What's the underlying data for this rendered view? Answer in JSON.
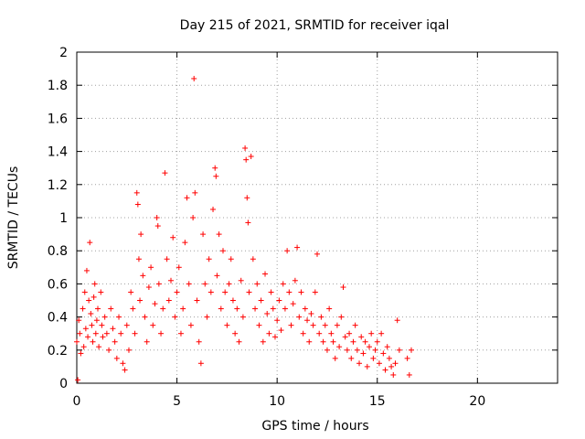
{
  "chart_data": {
    "type": "scatter",
    "title": "Day 215 of 2021, SRMTID for receiver iqal",
    "xlabel": "GPS time / hours",
    "ylabel": "SRMTID / TECUs",
    "xlim": [
      0,
      24
    ],
    "ylim": [
      0,
      2
    ],
    "xticks": [
      0,
      5,
      10,
      15,
      20
    ],
    "yticks": [
      0,
      0.2,
      0.4,
      0.6,
      0.8,
      1,
      1.2,
      1.4,
      1.6,
      1.8,
      2
    ],
    "xtick_labels": [
      "0",
      "5",
      "10",
      "15",
      "20"
    ],
    "ytick_labels": [
      "0",
      "0.2",
      "0.4",
      "0.6",
      "0.8",
      "1",
      "1.2",
      "1.4",
      "1.6",
      "1.8",
      "2"
    ],
    "grid": true,
    "marker": "+",
    "color": "#ff0000",
    "series": [
      {
        "name": "SRMTID",
        "points": [
          [
            0.0,
            0.25
          ],
          [
            0.05,
            0.02
          ],
          [
            0.1,
            0.38
          ],
          [
            0.15,
            0.3
          ],
          [
            0.2,
            0.18
          ],
          [
            0.3,
            0.45
          ],
          [
            0.35,
            0.22
          ],
          [
            0.4,
            0.55
          ],
          [
            0.45,
            0.33
          ],
          [
            0.5,
            0.68
          ],
          [
            0.55,
            0.28
          ],
          [
            0.6,
            0.5
          ],
          [
            0.65,
            0.85
          ],
          [
            0.7,
            0.42
          ],
          [
            0.75,
            0.35
          ],
          [
            0.8,
            0.25
          ],
          [
            0.85,
            0.52
          ],
          [
            0.9,
            0.6
          ],
          [
            0.95,
            0.3
          ],
          [
            1.0,
            0.38
          ],
          [
            1.05,
            0.45
          ],
          [
            1.1,
            0.22
          ],
          [
            1.2,
            0.55
          ],
          [
            1.25,
            0.35
          ],
          [
            1.3,
            0.28
          ],
          [
            1.4,
            0.4
          ],
          [
            1.5,
            0.3
          ],
          [
            1.6,
            0.2
          ],
          [
            1.7,
            0.45
          ],
          [
            1.8,
            0.33
          ],
          [
            1.9,
            0.25
          ],
          [
            2.0,
            0.15
          ],
          [
            2.1,
            0.4
          ],
          [
            2.2,
            0.3
          ],
          [
            2.3,
            0.12
          ],
          [
            2.4,
            0.08
          ],
          [
            2.5,
            0.35
          ],
          [
            2.6,
            0.2
          ],
          [
            2.7,
            0.55
          ],
          [
            2.8,
            0.45
          ],
          [
            2.9,
            0.3
          ],
          [
            3.0,
            1.15
          ],
          [
            3.05,
            1.08
          ],
          [
            3.1,
            0.75
          ],
          [
            3.15,
            0.5
          ],
          [
            3.2,
            0.9
          ],
          [
            3.3,
            0.65
          ],
          [
            3.4,
            0.4
          ],
          [
            3.5,
            0.25
          ],
          [
            3.6,
            0.58
          ],
          [
            3.7,
            0.7
          ],
          [
            3.8,
            0.35
          ],
          [
            3.9,
            0.48
          ],
          [
            4.0,
            1.0
          ],
          [
            4.05,
            0.95
          ],
          [
            4.1,
            0.6
          ],
          [
            4.2,
            0.3
          ],
          [
            4.3,
            0.45
          ],
          [
            4.4,
            1.27
          ],
          [
            4.5,
            0.75
          ],
          [
            4.6,
            0.5
          ],
          [
            4.7,
            0.62
          ],
          [
            4.8,
            0.88
          ],
          [
            4.9,
            0.4
          ],
          [
            5.0,
            0.55
          ],
          [
            5.1,
            0.7
          ],
          [
            5.2,
            0.3
          ],
          [
            5.3,
            0.45
          ],
          [
            5.4,
            0.85
          ],
          [
            5.5,
            1.12
          ],
          [
            5.6,
            0.6
          ],
          [
            5.7,
            0.35
          ],
          [
            5.8,
            1.0
          ],
          [
            5.85,
            1.84
          ],
          [
            5.9,
            1.15
          ],
          [
            6.0,
            0.5
          ],
          [
            6.1,
            0.25
          ],
          [
            6.2,
            0.12
          ],
          [
            6.3,
            0.9
          ],
          [
            6.4,
            0.6
          ],
          [
            6.5,
            0.4
          ],
          [
            6.6,
            0.75
          ],
          [
            6.7,
            0.55
          ],
          [
            6.8,
            1.05
          ],
          [
            6.9,
            1.3
          ],
          [
            6.95,
            1.25
          ],
          [
            7.0,
            0.65
          ],
          [
            7.1,
            0.9
          ],
          [
            7.2,
            0.45
          ],
          [
            7.3,
            0.8
          ],
          [
            7.4,
            0.55
          ],
          [
            7.5,
            0.35
          ],
          [
            7.6,
            0.6
          ],
          [
            7.7,
            0.75
          ],
          [
            7.8,
            0.5
          ],
          [
            7.9,
            0.3
          ],
          [
            8.0,
            0.45
          ],
          [
            8.1,
            0.25
          ],
          [
            8.2,
            0.62
          ],
          [
            8.3,
            0.4
          ],
          [
            8.4,
            1.42
          ],
          [
            8.45,
            1.35
          ],
          [
            8.5,
            1.12
          ],
          [
            8.55,
            0.97
          ],
          [
            8.6,
            0.55
          ],
          [
            8.7,
            1.37
          ],
          [
            8.8,
            0.75
          ],
          [
            8.9,
            0.45
          ],
          [
            9.0,
            0.6
          ],
          [
            9.1,
            0.35
          ],
          [
            9.2,
            0.5
          ],
          [
            9.3,
            0.25
          ],
          [
            9.4,
            0.66
          ],
          [
            9.5,
            0.42
          ],
          [
            9.6,
            0.3
          ],
          [
            9.7,
            0.55
          ],
          [
            9.8,
            0.45
          ],
          [
            9.9,
            0.28
          ],
          [
            10.0,
            0.38
          ],
          [
            10.1,
            0.5
          ],
          [
            10.2,
            0.32
          ],
          [
            10.3,
            0.6
          ],
          [
            10.4,
            0.45
          ],
          [
            10.5,
            0.8
          ],
          [
            10.6,
            0.55
          ],
          [
            10.7,
            0.35
          ],
          [
            10.8,
            0.48
          ],
          [
            10.9,
            0.62
          ],
          [
            11.0,
            0.82
          ],
          [
            11.1,
            0.4
          ],
          [
            11.2,
            0.55
          ],
          [
            11.3,
            0.3
          ],
          [
            11.4,
            0.45
          ],
          [
            11.5,
            0.38
          ],
          [
            11.6,
            0.25
          ],
          [
            11.7,
            0.42
          ],
          [
            11.8,
            0.35
          ],
          [
            11.9,
            0.55
          ],
          [
            12.0,
            0.78
          ],
          [
            12.1,
            0.3
          ],
          [
            12.2,
            0.4
          ],
          [
            12.3,
            0.25
          ],
          [
            12.4,
            0.35
          ],
          [
            12.5,
            0.2
          ],
          [
            12.6,
            0.45
          ],
          [
            12.7,
            0.3
          ],
          [
            12.8,
            0.25
          ],
          [
            12.9,
            0.15
          ],
          [
            13.0,
            0.35
          ],
          [
            13.1,
            0.22
          ],
          [
            13.2,
            0.4
          ],
          [
            13.3,
            0.58
          ],
          [
            13.4,
            0.28
          ],
          [
            13.5,
            0.2
          ],
          [
            13.6,
            0.3
          ],
          [
            13.7,
            0.15
          ],
          [
            13.8,
            0.25
          ],
          [
            13.9,
            0.35
          ],
          [
            14.0,
            0.2
          ],
          [
            14.1,
            0.12
          ],
          [
            14.2,
            0.28
          ],
          [
            14.3,
            0.18
          ],
          [
            14.4,
            0.25
          ],
          [
            14.5,
            0.1
          ],
          [
            14.6,
            0.22
          ],
          [
            14.7,
            0.3
          ],
          [
            14.8,
            0.15
          ],
          [
            14.9,
            0.2
          ],
          [
            15.0,
            0.25
          ],
          [
            15.1,
            0.12
          ],
          [
            15.2,
            0.3
          ],
          [
            15.3,
            0.18
          ],
          [
            15.4,
            0.08
          ],
          [
            15.5,
            0.22
          ],
          [
            15.6,
            0.15
          ],
          [
            15.7,
            0.1
          ],
          [
            15.8,
            0.05
          ],
          [
            15.9,
            0.12
          ],
          [
            16.0,
            0.38
          ],
          [
            16.1,
            0.2
          ],
          [
            16.5,
            0.15
          ],
          [
            16.6,
            0.05
          ],
          [
            16.7,
            0.2
          ]
        ]
      }
    ]
  }
}
